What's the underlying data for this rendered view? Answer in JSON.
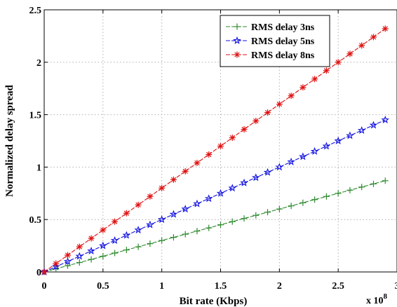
{
  "chart_data": {
    "type": "line",
    "xlabel": "Bit rate (Kbps)",
    "ylabel": "Normalized delay spread",
    "x_multiplier_label": "x 10",
    "x_multiplier_exp": "8",
    "xlim": [
      0,
      3
    ],
    "ylim": [
      0,
      2.5
    ],
    "x_ticks": [
      "0",
      "0.5",
      "1",
      "1.5",
      "2",
      "2.5",
      "3"
    ],
    "y_ticks": [
      "0",
      "0.5",
      "1",
      "1.5",
      "2",
      "2.5"
    ],
    "grid": true,
    "legend_position": "top-right",
    "x": [
      0,
      0.1,
      0.2,
      0.3,
      0.4,
      0.5,
      0.6,
      0.7,
      0.8,
      0.9,
      1.0,
      1.1,
      1.2,
      1.3,
      1.4,
      1.5,
      1.6,
      1.7,
      1.8,
      1.9,
      2.0,
      2.1,
      2.2,
      2.3,
      2.4,
      2.5,
      2.6,
      2.7,
      2.8,
      2.9
    ],
    "series": [
      {
        "name": "RMS delay 3ns",
        "color": "#2e8b2e",
        "marker": "plus",
        "values": [
          0,
          0.03,
          0.06,
          0.09,
          0.12,
          0.15,
          0.18,
          0.21,
          0.24,
          0.27,
          0.3,
          0.33,
          0.36,
          0.39,
          0.42,
          0.45,
          0.48,
          0.51,
          0.54,
          0.57,
          0.6,
          0.63,
          0.66,
          0.69,
          0.72,
          0.75,
          0.78,
          0.81,
          0.84,
          0.87
        ]
      },
      {
        "name": "RMS delay 5ns",
        "color": "#1010e0",
        "marker": "star",
        "values": [
          0,
          0.05,
          0.1,
          0.15,
          0.2,
          0.25,
          0.3,
          0.35,
          0.4,
          0.45,
          0.5,
          0.55,
          0.6,
          0.65,
          0.7,
          0.75,
          0.8,
          0.85,
          0.9,
          0.95,
          1.0,
          1.05,
          1.1,
          1.15,
          1.2,
          1.25,
          1.3,
          1.35,
          1.4,
          1.45
        ]
      },
      {
        "name": "RMS delay 8ns",
        "color": "#e01010",
        "marker": "asterisk",
        "values": [
          0,
          0.08,
          0.16,
          0.24,
          0.32,
          0.4,
          0.48,
          0.56,
          0.64,
          0.72,
          0.8,
          0.88,
          0.96,
          1.04,
          1.12,
          1.2,
          1.28,
          1.36,
          1.44,
          1.52,
          1.6,
          1.68,
          1.76,
          1.84,
          1.92,
          2.0,
          2.08,
          2.16,
          2.24,
          2.32
        ]
      }
    ]
  }
}
